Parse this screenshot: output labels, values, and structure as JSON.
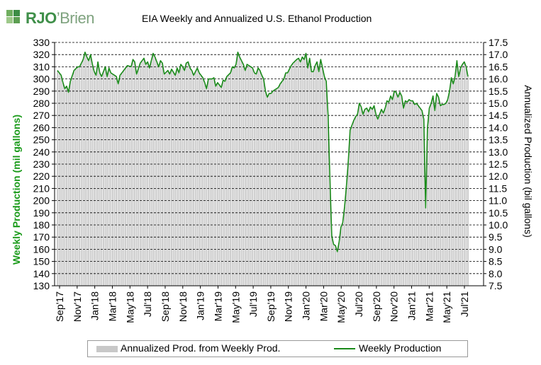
{
  "brand": {
    "rjo": "RJO",
    "brien": "’Brien"
  },
  "chart_data": {
    "type": "bar",
    "title": "EIA Weekly and Annualized U.S. Ethanol Production",
    "ylabel": "Weekly Production (mil gallons)",
    "y2label": "Annualized Production (bil gallons)",
    "ylim": [
      130,
      330
    ],
    "ylim_right": [
      7.5,
      17.5
    ],
    "yticks": [
      130,
      140,
      150,
      160,
      170,
      180,
      190,
      200,
      210,
      220,
      230,
      240,
      250,
      260,
      270,
      280,
      290,
      300,
      310,
      320,
      330
    ],
    "yticks_right": [
      "7.5",
      "8.0",
      "8.5",
      "9.0",
      "9.5",
      "10.0",
      "10.5",
      "11.0",
      "11.5",
      "12.0",
      "12.5",
      "13.0",
      "13.5",
      "14.0",
      "14.5",
      "15.0",
      "15.5",
      "16.0",
      "16.5",
      "17.0",
      "17.5"
    ],
    "xticks": [
      "Sep'17",
      "Nov'17",
      "Jan'18",
      "Mar'18",
      "May'18",
      "Jul'18",
      "Sep'18",
      "Nov'18",
      "Jan'19",
      "Mar'19",
      "May'19",
      "Jul'19",
      "Sep'19",
      "Nov'19",
      "Jan'20",
      "Mar'20",
      "May'20",
      "Jul'20",
      "Sep'20",
      "Nov'20",
      "Jan'21",
      "Mar'21",
      "May'21",
      "Jul'21"
    ],
    "grid": true,
    "legend_position": "bottom",
    "colors": {
      "bars": "#c8c8c8",
      "line": "#1a8a1a",
      "grid": "#000000"
    },
    "series": [
      {
        "name": "Weekly Production",
        "type": "line",
        "points": [
          [
            0,
            307
          ],
          [
            2,
            303
          ],
          [
            3,
            297
          ],
          [
            4,
            292
          ],
          [
            5,
            294
          ],
          [
            6,
            289
          ],
          [
            7,
            298
          ],
          [
            9,
            307
          ],
          [
            11,
            310
          ],
          [
            12,
            310
          ],
          [
            13,
            313
          ],
          [
            14,
            316
          ],
          [
            15,
            322
          ],
          [
            16,
            318
          ],
          [
            17,
            315
          ],
          [
            18,
            320
          ],
          [
            19,
            312
          ],
          [
            20,
            306
          ],
          [
            21,
            303
          ],
          [
            22,
            314
          ],
          [
            23,
            305
          ],
          [
            24,
            302
          ],
          [
            26,
            310
          ],
          [
            27,
            302
          ],
          [
            28,
            309
          ],
          [
            29,
            305
          ],
          [
            31,
            303
          ],
          [
            32,
            302
          ],
          [
            33,
            296
          ],
          [
            34,
            303
          ],
          [
            35,
            305
          ],
          [
            37,
            309
          ],
          [
            38,
            311
          ],
          [
            40,
            310
          ],
          [
            41,
            316
          ],
          [
            42,
            314
          ],
          [
            43,
            304
          ],
          [
            45,
            313
          ],
          [
            47,
            317
          ],
          [
            48,
            312
          ],
          [
            49,
            314
          ],
          [
            50,
            309
          ],
          [
            52,
            321
          ],
          [
            53,
            318
          ],
          [
            55,
            310
          ],
          [
            56,
            315
          ],
          [
            57,
            313
          ],
          [
            58,
            304
          ],
          [
            60,
            307
          ],
          [
            61,
            304
          ],
          [
            62,
            308
          ],
          [
            64,
            303
          ],
          [
            65,
            309
          ],
          [
            66,
            305
          ],
          [
            67,
            312
          ],
          [
            68,
            310
          ],
          [
            69,
            307
          ],
          [
            70,
            313
          ],
          [
            71,
            314
          ],
          [
            72,
            309
          ],
          [
            73,
            307
          ],
          [
            74,
            303
          ],
          [
            76,
            309
          ],
          [
            77,
            305
          ],
          [
            79,
            301
          ],
          [
            80,
            297
          ],
          [
            81,
            292
          ],
          [
            82,
            300
          ],
          [
            84,
            300
          ],
          [
            85,
            301
          ],
          [
            86,
            294
          ],
          [
            87,
            297
          ],
          [
            89,
            293
          ],
          [
            90,
            299
          ],
          [
            91,
            298
          ],
          [
            92,
            302
          ],
          [
            94,
            305
          ],
          [
            95,
            310
          ],
          [
            96,
            309
          ],
          [
            97,
            312
          ],
          [
            98,
            322
          ],
          [
            99,
            318
          ],
          [
            100,
            315
          ],
          [
            101,
            312
          ],
          [
            102,
            307
          ],
          [
            103,
            312
          ],
          [
            104,
            311
          ],
          [
            106,
            309
          ],
          [
            107,
            305
          ],
          [
            108,
            304
          ],
          [
            109,
            309
          ],
          [
            110,
            307
          ],
          [
            111,
            303
          ],
          [
            112,
            300
          ],
          [
            113,
            290
          ],
          [
            114,
            285
          ],
          [
            115,
            288
          ],
          [
            116,
            288
          ],
          [
            117,
            290
          ],
          [
            118,
            291
          ],
          [
            119,
            292
          ],
          [
            120,
            293
          ],
          [
            121,
            296
          ],
          [
            122,
            298
          ],
          [
            123,
            300
          ],
          [
            124,
            305
          ],
          [
            125,
            305
          ],
          [
            126,
            308
          ],
          [
            127,
            311
          ],
          [
            128,
            313
          ],
          [
            130,
            316
          ],
          [
            131,
            317
          ],
          [
            132,
            314
          ],
          [
            133,
            318
          ],
          [
            134,
            316
          ],
          [
            135,
            321
          ],
          [
            136,
            309
          ],
          [
            137,
            317
          ],
          [
            138,
            306
          ],
          [
            139,
            306
          ],
          [
            140,
            311
          ],
          [
            141,
            314
          ],
          [
            142,
            306
          ],
          [
            143,
            316
          ],
          [
            144,
            309
          ],
          [
            145,
            302
          ],
          [
            146,
            298
          ],
          [
            147,
            270
          ],
          [
            148,
            218
          ],
          [
            149,
            171
          ],
          [
            150,
            164
          ],
          [
            151,
            163
          ],
          [
            152,
            158
          ],
          [
            153,
            166
          ],
          [
            154,
            178
          ],
          [
            155,
            182
          ],
          [
            156,
            195
          ],
          [
            157,
            212
          ],
          [
            158,
            232
          ],
          [
            159,
            258
          ],
          [
            160,
            262
          ],
          [
            161,
            266
          ],
          [
            162,
            269
          ],
          [
            163,
            271
          ],
          [
            164,
            280
          ],
          [
            165,
            277
          ],
          [
            166,
            271
          ],
          [
            167,
            275
          ],
          [
            168,
            276
          ],
          [
            169,
            273
          ],
          [
            170,
            277
          ],
          [
            171,
            275
          ],
          [
            172,
            278
          ],
          [
            173,
            271
          ],
          [
            174,
            267
          ],
          [
            175,
            271
          ],
          [
            176,
            275
          ],
          [
            177,
            272
          ],
          [
            178,
            276
          ],
          [
            179,
            282
          ],
          [
            180,
            281
          ],
          [
            181,
            286
          ],
          [
            182,
            283
          ],
          [
            183,
            290
          ],
          [
            184,
            289
          ],
          [
            185,
            285
          ],
          [
            186,
            289
          ],
          [
            187,
            286
          ],
          [
            188,
            276
          ],
          [
            189,
            282
          ],
          [
            190,
            281
          ],
          [
            191,
            283
          ],
          [
            192,
            282
          ],
          [
            193,
            282
          ],
          [
            194,
            279
          ],
          [
            195,
            280
          ],
          [
            196,
            278
          ],
          [
            197,
            276
          ],
          [
            198,
            274
          ],
          [
            199,
            267
          ],
          [
            200,
            194
          ],
          [
            201,
            260
          ],
          [
            202,
            276
          ],
          [
            203,
            280
          ],
          [
            204,
            286
          ],
          [
            205,
            274
          ],
          [
            206,
            288
          ],
          [
            207,
            285
          ],
          [
            208,
            278
          ],
          [
            209,
            279
          ],
          [
            210,
            279
          ],
          [
            211,
            280
          ],
          [
            212,
            283
          ],
          [
            213,
            290
          ],
          [
            214,
            301
          ],
          [
            215,
            296
          ],
          [
            216,
            302
          ],
          [
            217,
            315
          ],
          [
            218,
            302
          ],
          [
            219,
            309
          ],
          [
            220,
            312
          ],
          [
            221,
            314
          ],
          [
            222,
            310
          ],
          [
            223,
            302
          ]
        ]
      }
    ]
  }
}
